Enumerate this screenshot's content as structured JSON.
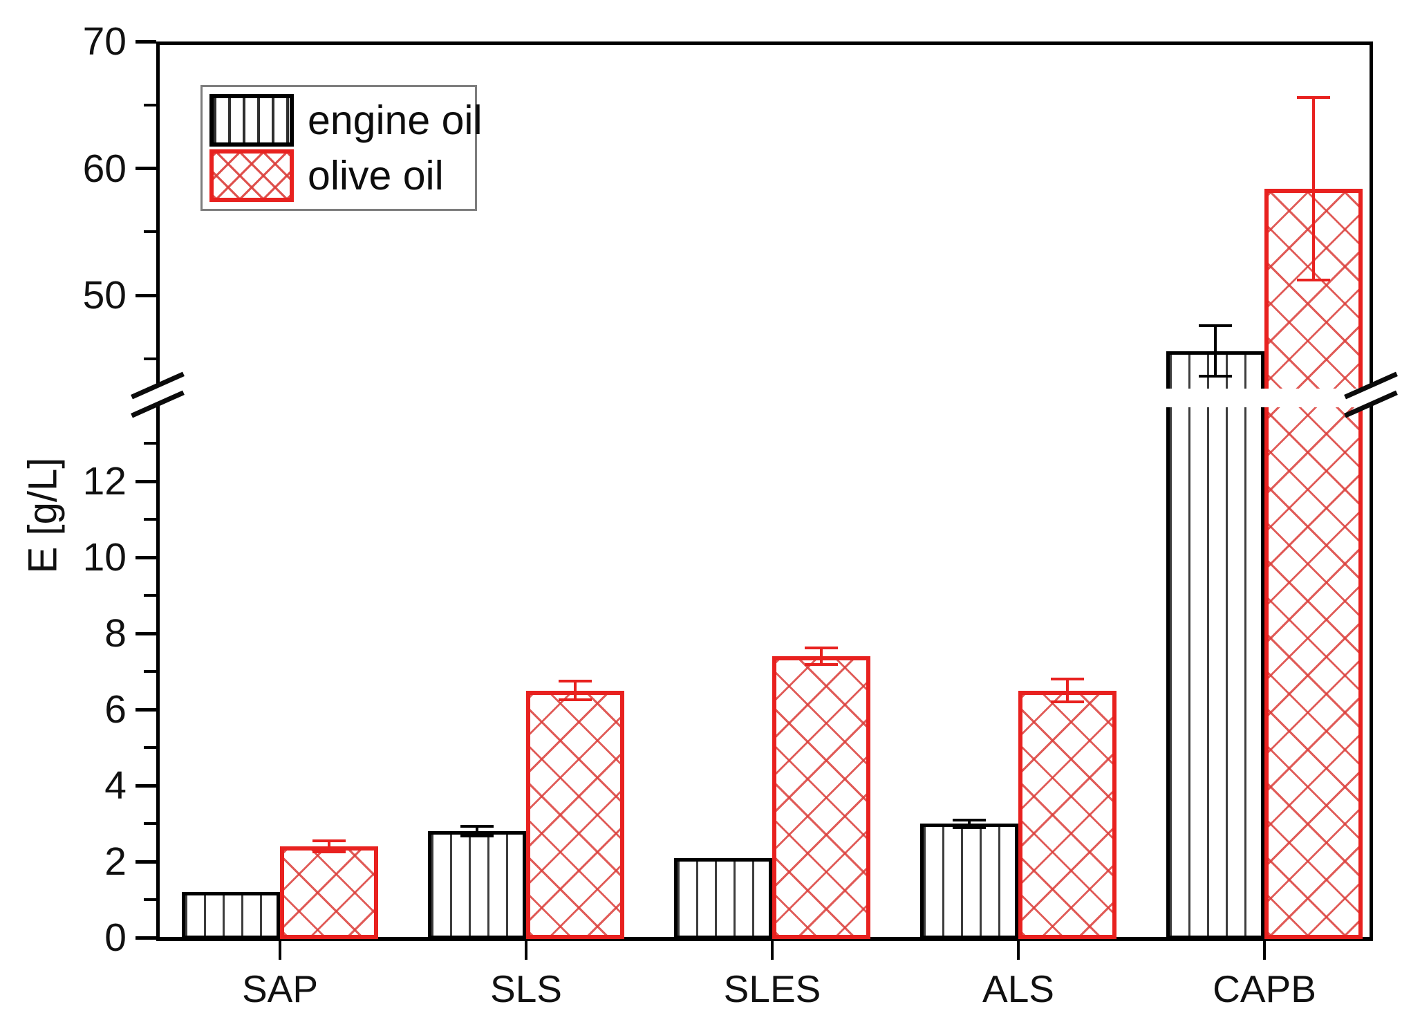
{
  "figure": {
    "background": "#ffffff",
    "ink_color": "#000000",
    "accent_red": "#e8211f"
  },
  "chart_data": {
    "type": "bar",
    "title": "",
    "xlabel": "",
    "ylabel": "E [g/L]",
    "categories": [
      "SAP",
      "SLS",
      "SLES",
      "ALS",
      "CAPB"
    ],
    "series": [
      {
        "name": "engine oil",
        "color": "#000000",
        "hatch": "vertical-lines",
        "values": [
          1.2,
          2.8,
          2.1,
          3.0,
          45.6
        ],
        "errors": [
          null,
          0.12,
          null,
          0.1,
          2.0
        ]
      },
      {
        "name": "olive oil",
        "color": "#e8211f",
        "hatch": "diagonal-crosshatch",
        "values": [
          2.4,
          6.5,
          7.4,
          6.5,
          58.4
        ],
        "errors": [
          0.15,
          0.25,
          0.22,
          0.3,
          7.2
        ]
      }
    ],
    "y_axis": {
      "broken": true,
      "lower_section": {
        "range": [
          0,
          13.9
        ],
        "ticks_major": [
          0,
          2,
          4,
          6,
          8,
          10,
          12
        ],
        "ticks_minor": [
          1,
          3,
          5,
          7,
          9,
          11,
          13
        ]
      },
      "upper_section": {
        "range": [
          43,
          70
        ],
        "ticks_major": [
          50,
          60,
          70
        ],
        "ticks_minor": [
          45,
          55,
          65
        ]
      }
    },
    "legend": {
      "position": "top-left",
      "entries": [
        "engine oil",
        "olive oil"
      ]
    },
    "grid": false
  }
}
